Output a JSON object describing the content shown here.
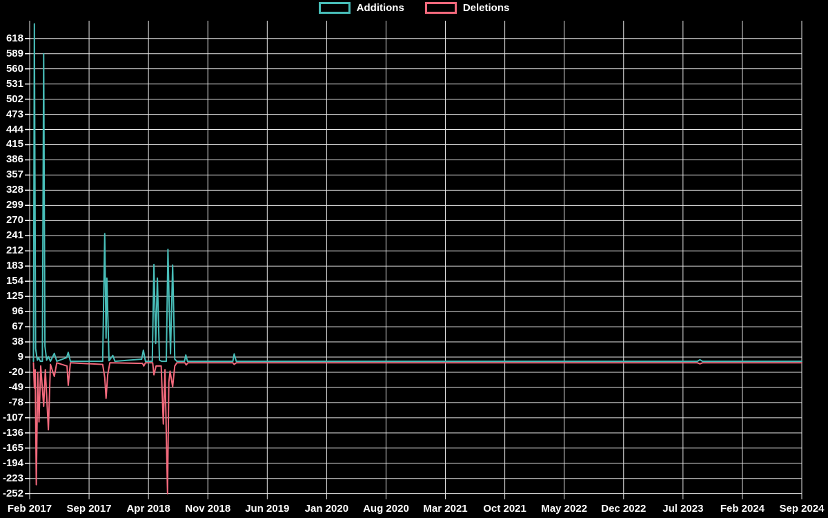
{
  "legend": {
    "items": [
      {
        "label": "Additions",
        "color": "#48bdb8"
      },
      {
        "label": "Deletions",
        "color": "#f2697c"
      }
    ]
  },
  "chart_data": {
    "type": "line",
    "title": "",
    "xlabel": "",
    "ylabel": "",
    "grid": true,
    "legend_position": "top-center",
    "background_color": "#000000",
    "grid_color": "#e8e8e8",
    "text_color": "#ffffff",
    "x_tick_labels": [
      "Feb 2017",
      "Sep 2017",
      "Apr 2018",
      "Nov 2018",
      "Jun 2019",
      "Jan 2020",
      "Aug 2020",
      "Mar 2021",
      "Oct 2021",
      "May 2022",
      "Dec 2022",
      "Jul 2023",
      "Feb 2024",
      "Sep 2024"
    ],
    "y_tick_values": [
      618,
      589,
      560,
      531,
      502,
      473,
      444,
      415,
      386,
      357,
      328,
      299,
      270,
      241,
      212,
      183,
      154,
      125,
      96,
      67,
      38,
      9,
      -20,
      -49,
      -78,
      -107,
      -136,
      -165,
      -194,
      -223,
      -252
    ],
    "x_range_months": [
      0,
      91
    ],
    "ylim": [
      -263,
      652
    ],
    "series": [
      {
        "name": "Additions",
        "color": "#48bdb8",
        "points": [
          [
            0.45,
            1
          ],
          [
            0.55,
            646
          ],
          [
            0.7,
            25
          ],
          [
            0.9,
            3
          ],
          [
            1.05,
            8
          ],
          [
            1.25,
            1
          ],
          [
            1.5,
            1
          ],
          [
            1.65,
            589
          ],
          [
            1.8,
            30
          ],
          [
            2.0,
            3
          ],
          [
            2.2,
            10
          ],
          [
            2.45,
            1
          ],
          [
            2.9,
            16
          ],
          [
            3.2,
            1
          ],
          [
            4.35,
            8
          ],
          [
            4.55,
            18
          ],
          [
            4.8,
            1
          ],
          [
            8.6,
            1
          ],
          [
            8.85,
            245
          ],
          [
            9.0,
            45
          ],
          [
            9.1,
            160
          ],
          [
            9.35,
            2
          ],
          [
            9.8,
            12
          ],
          [
            10.05,
            1
          ],
          [
            13.2,
            5
          ],
          [
            13.4,
            22
          ],
          [
            13.65,
            1
          ],
          [
            14.45,
            1
          ],
          [
            14.65,
            186
          ],
          [
            14.85,
            35
          ],
          [
            15.05,
            160
          ],
          [
            15.3,
            3
          ],
          [
            15.55,
            1
          ],
          [
            16.1,
            1
          ],
          [
            16.3,
            215
          ],
          [
            16.45,
            100
          ],
          [
            16.6,
            15
          ],
          [
            16.85,
            185
          ],
          [
            17.1,
            5
          ],
          [
            17.35,
            1
          ],
          [
            18.25,
            1
          ],
          [
            18.4,
            13
          ],
          [
            18.6,
            1
          ],
          [
            23.95,
            1
          ],
          [
            24.1,
            15
          ],
          [
            24.35,
            1
          ],
          [
            78.7,
            1
          ],
          [
            79.0,
            4
          ],
          [
            79.3,
            1
          ],
          [
            91,
            1
          ]
        ]
      },
      {
        "name": "Deletions",
        "color": "#f2697c",
        "points": [
          [
            0.45,
            -2
          ],
          [
            0.55,
            -50
          ],
          [
            0.65,
            -15
          ],
          [
            0.78,
            -235
          ],
          [
            0.95,
            -20
          ],
          [
            1.1,
            -115
          ],
          [
            1.3,
            -8
          ],
          [
            1.65,
            -85
          ],
          [
            1.85,
            -15
          ],
          [
            2.2,
            -130
          ],
          [
            2.45,
            -5
          ],
          [
            2.9,
            -28
          ],
          [
            3.2,
            -2
          ],
          [
            4.4,
            -8
          ],
          [
            4.55,
            -45
          ],
          [
            4.8,
            -2
          ],
          [
            8.6,
            -5
          ],
          [
            8.85,
            -30
          ],
          [
            9.0,
            -70
          ],
          [
            9.2,
            -25
          ],
          [
            9.45,
            -2
          ],
          [
            13.3,
            -3
          ],
          [
            13.45,
            -8
          ],
          [
            13.65,
            -2
          ],
          [
            14.5,
            -2
          ],
          [
            14.65,
            -25
          ],
          [
            14.9,
            -8
          ],
          [
            15.5,
            -8
          ],
          [
            15.75,
            -119
          ],
          [
            15.95,
            -15
          ],
          [
            16.25,
            -252
          ],
          [
            16.4,
            -39
          ],
          [
            16.55,
            -18
          ],
          [
            16.85,
            -48
          ],
          [
            17.1,
            -8
          ],
          [
            17.35,
            -2
          ],
          [
            18.3,
            -2
          ],
          [
            18.45,
            -6
          ],
          [
            18.65,
            -2
          ],
          [
            23.95,
            -2
          ],
          [
            24.1,
            -5
          ],
          [
            24.35,
            -2
          ],
          [
            78.7,
            -2
          ],
          [
            79.0,
            -4
          ],
          [
            79.3,
            -2
          ],
          [
            91,
            -2
          ]
        ]
      }
    ]
  }
}
